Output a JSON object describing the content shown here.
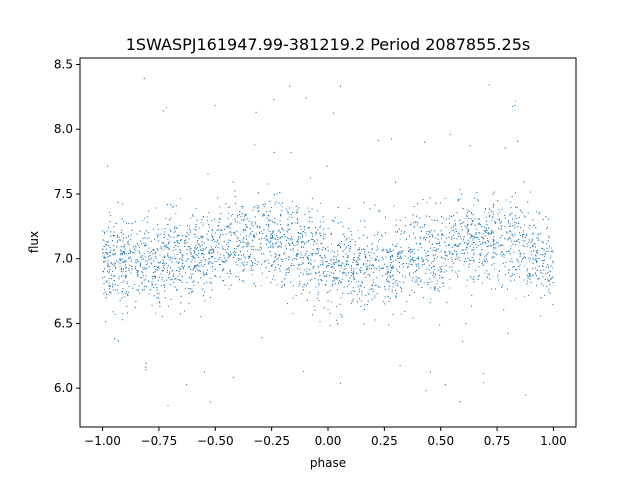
{
  "chart_data": {
    "type": "scatter",
    "title": "1SWASPJ161947.99-381219.2 Period 2087855.25s",
    "xlabel": "phase",
    "ylabel": "flux",
    "xlim": [
      -1.1,
      1.1
    ],
    "ylim": [
      5.7,
      8.55
    ],
    "xticks": [
      -1.0,
      -0.75,
      -0.5,
      -0.25,
      0.0,
      0.25,
      0.5,
      0.75,
      1.0
    ],
    "xtick_labels": [
      "−1.00",
      "−0.75",
      "−0.50",
      "−0.25",
      "0.00",
      "0.25",
      "0.50",
      "0.75",
      "1.00"
    ],
    "yticks": [
      6.0,
      6.5,
      7.0,
      7.5,
      8.0,
      8.5
    ],
    "ytick_labels": [
      "6.0",
      "6.5",
      "7.0",
      "7.5",
      "8.0",
      "8.5"
    ],
    "grid": false,
    "legend": "none",
    "marker_color": "#1f77b4",
    "series": [
      {
        "x_range": [
          -1.0,
          1.0
        ],
        "baseline_flux": 7.05,
        "typical_spread": [
          6.5,
          7.6
        ],
        "outlier_range": [
          5.85,
          8.4
        ],
        "profile_phase": [
          -1.0,
          -0.75,
          -0.5,
          -0.4,
          -0.25,
          -0.1,
          0.0,
          0.1,
          0.25,
          0.5,
          0.6,
          0.75,
          0.9,
          1.0
        ],
        "profile_flux": [
          6.95,
          7.0,
          7.05,
          7.15,
          7.15,
          7.05,
          6.95,
          6.9,
          6.95,
          7.05,
          7.15,
          7.15,
          7.05,
          6.95
        ]
      }
    ]
  }
}
